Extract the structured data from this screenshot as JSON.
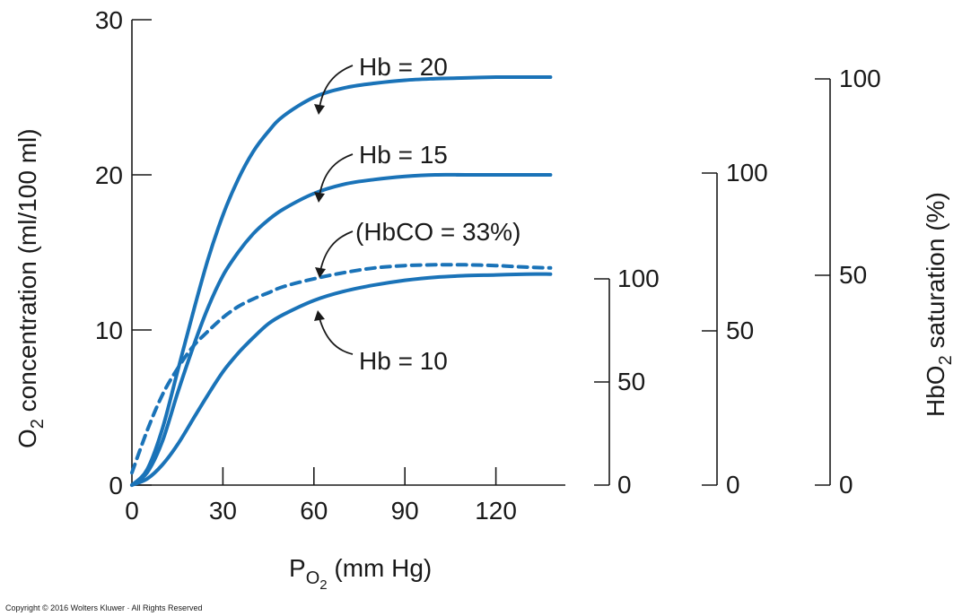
{
  "chart_data": {
    "type": "line",
    "x": [
      0,
      5,
      10,
      15,
      20,
      25,
      30,
      35,
      40,
      45,
      50,
      60,
      70,
      80,
      90,
      100,
      110,
      120,
      130,
      138
    ],
    "xlim": [
      0,
      140
    ],
    "ylim": [
      0,
      30
    ],
    "x_ticks": [
      "0",
      "30",
      "60",
      "90",
      "120"
    ],
    "y_ticks": [
      "0",
      "10",
      "20",
      "30"
    ],
    "ylabel_main": "O",
    "ylabel_sub": "2",
    "ylabel_rest": " concentration (ml/100 ml)",
    "xlabel_main": "P",
    "xlabel_sub": "O",
    "xlabel_subsub": "2",
    "xlabel_rest": " (mm Hg)",
    "series": [
      {
        "name": "Hb = 20",
        "style": "solid",
        "color": "#1a73b8",
        "values": [
          0,
          1.0,
          3.6,
          7.3,
          11.0,
          14.5,
          17.4,
          19.7,
          21.5,
          22.8,
          23.8,
          25.0,
          25.6,
          25.9,
          26.1,
          26.2,
          26.25,
          26.3,
          26.3,
          26.3
        ]
      },
      {
        "name": "Hb = 15",
        "style": "solid",
        "color": "#1a73b8",
        "values": [
          0,
          0.8,
          2.8,
          5.9,
          8.8,
          11.4,
          13.5,
          15.0,
          16.2,
          17.1,
          17.8,
          18.8,
          19.4,
          19.7,
          19.9,
          20.0,
          20.0,
          20.0,
          20.0,
          20.0
        ]
      },
      {
        "name": "(HbCO = 33%)",
        "style": "dashed",
        "color": "#1a73b8",
        "values": [
          0.8,
          3.5,
          5.8,
          7.5,
          8.9,
          9.9,
          10.8,
          11.5,
          12.0,
          12.4,
          12.8,
          13.3,
          13.7,
          14.0,
          14.15,
          14.2,
          14.2,
          14.15,
          14.05,
          14.0
        ]
      },
      {
        "name": "Hb = 10",
        "style": "solid",
        "color": "#1a73b8",
        "values": [
          0,
          0.4,
          1.3,
          2.6,
          4.2,
          5.8,
          7.3,
          8.5,
          9.5,
          10.4,
          11.0,
          11.9,
          12.5,
          12.9,
          13.2,
          13.4,
          13.5,
          13.55,
          13.6,
          13.6
        ]
      }
    ],
    "labels": {
      "hb20": "Hb = 20",
      "hb15": "Hb = 15",
      "hbco": "(HbCO = 33%)",
      "hb10": "Hb = 10"
    },
    "saturation_axes": {
      "title_main": "HbO",
      "title_sub": "2",
      "title_rest": " saturation (%)",
      "scale_hb10": {
        "top": "100",
        "mid": "50",
        "bottom": "0"
      },
      "scale_hb15": {
        "top": "100",
        "mid": "50",
        "bottom": "0"
      },
      "scale_hb20": {
        "top": "100",
        "mid": "50",
        "bottom": "0"
      }
    }
  },
  "copyright": "Copyright © 2016 Wolters Kluwer · All Rights Reserved"
}
